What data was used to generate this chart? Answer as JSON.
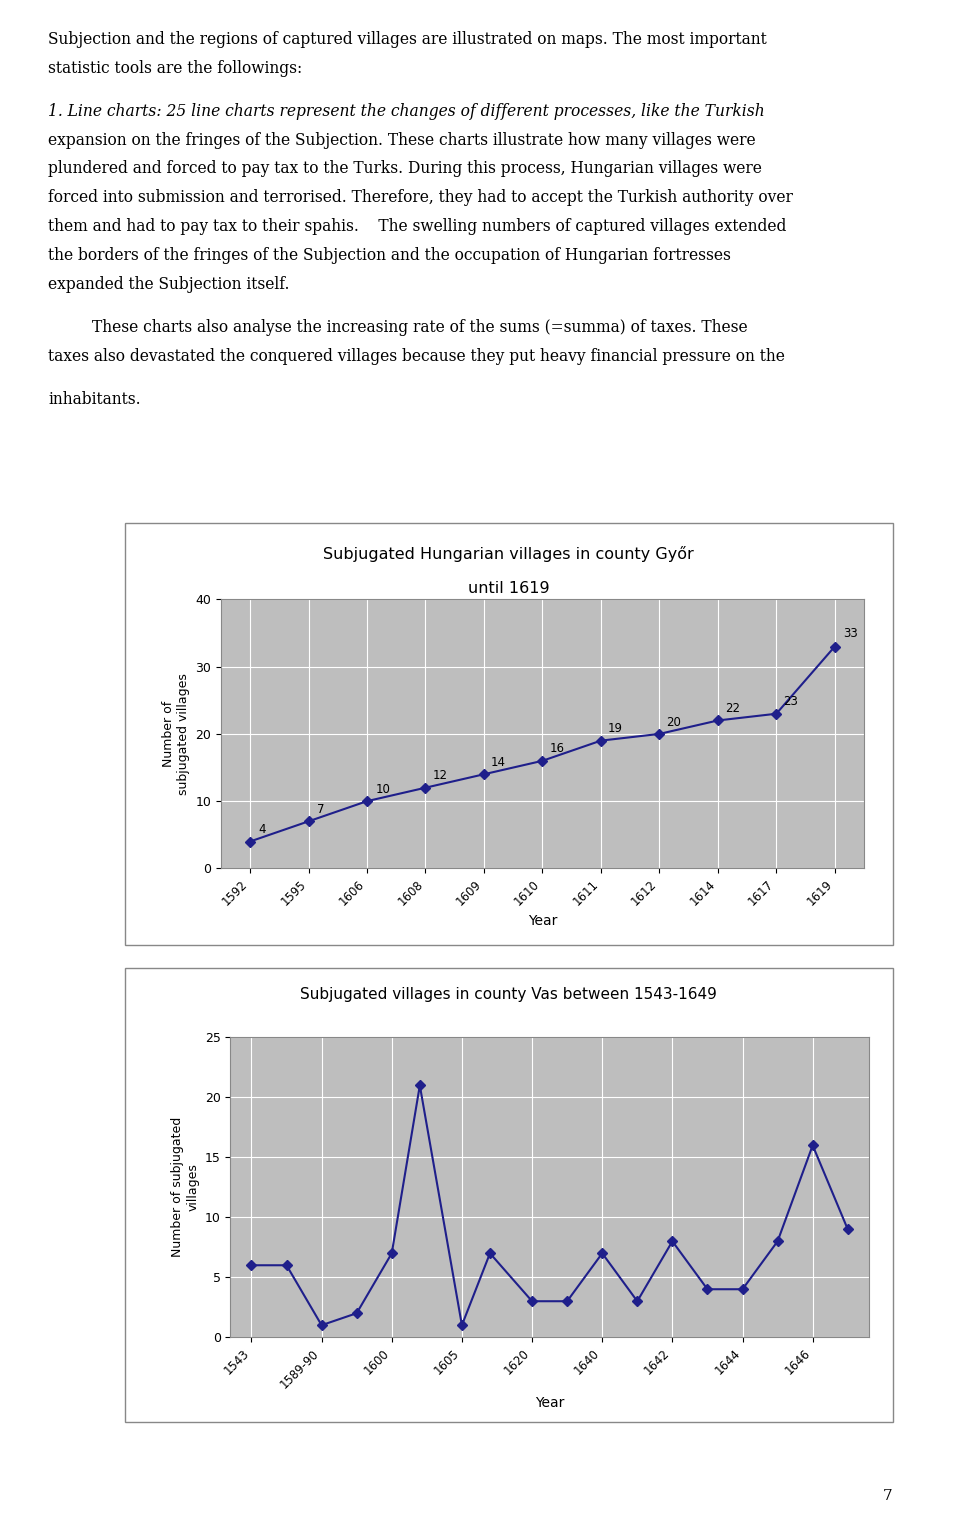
{
  "chart1": {
    "title_line1": "Subjugated Hungarian villages in county Győr",
    "title_line2": "until 1619",
    "xlabel": "Year",
    "ylabel": "Number of\nsubjugated villages",
    "years": [
      "1592",
      "1595",
      "1606",
      "1608",
      "1609",
      "1610",
      "1611",
      "1612",
      "1614",
      "1617",
      "1619"
    ],
    "values": [
      4,
      7,
      10,
      12,
      14,
      16,
      19,
      20,
      22,
      23,
      33
    ],
    "ylim": [
      0,
      40
    ],
    "yticks": [
      0,
      10,
      20,
      30,
      40
    ],
    "line_color": "#1F1F8B",
    "marker_color": "#1F1F8B",
    "bg_color": "#BEBEBE",
    "grid_color": "#FFFFFF",
    "box_bg": "#FFFFFF"
  },
  "chart2": {
    "title": "Subjugated villages in county Vas between 1543-1649",
    "xlabel": "Year",
    "ylabel": "Number of subjugated\nvillages",
    "x_labels": [
      "1543",
      "1589-90",
      "1600",
      "1605",
      "1620",
      "1640",
      "1642",
      "1644",
      "1646"
    ],
    "x_positions": [
      0,
      1,
      2,
      3,
      4,
      5,
      6,
      7,
      8
    ],
    "data_x": [
      0,
      0.5,
      1,
      1.5,
      2,
      2.4,
      3,
      3.4,
      4,
      4.5,
      5,
      5.5,
      6,
      6.5,
      7,
      7.5,
      8,
      8.5
    ],
    "data_y": [
      6,
      6,
      1,
      2,
      7,
      21,
      1,
      7,
      3,
      3,
      7,
      3,
      8,
      4,
      4,
      8,
      16,
      9
    ],
    "ylim": [
      0,
      25
    ],
    "yticks": [
      0,
      5,
      10,
      15,
      20,
      25
    ],
    "line_color": "#1F1F8B",
    "marker_color": "#1F1F8B",
    "bg_color": "#BEBEBE",
    "grid_color": "#FFFFFF",
    "box_bg": "#FFFFFF"
  },
  "page_bg": "#FFFFFF",
  "text_color": "#000000",
  "figsize": [
    9.6,
    15.37
  ],
  "dpi": 100
}
